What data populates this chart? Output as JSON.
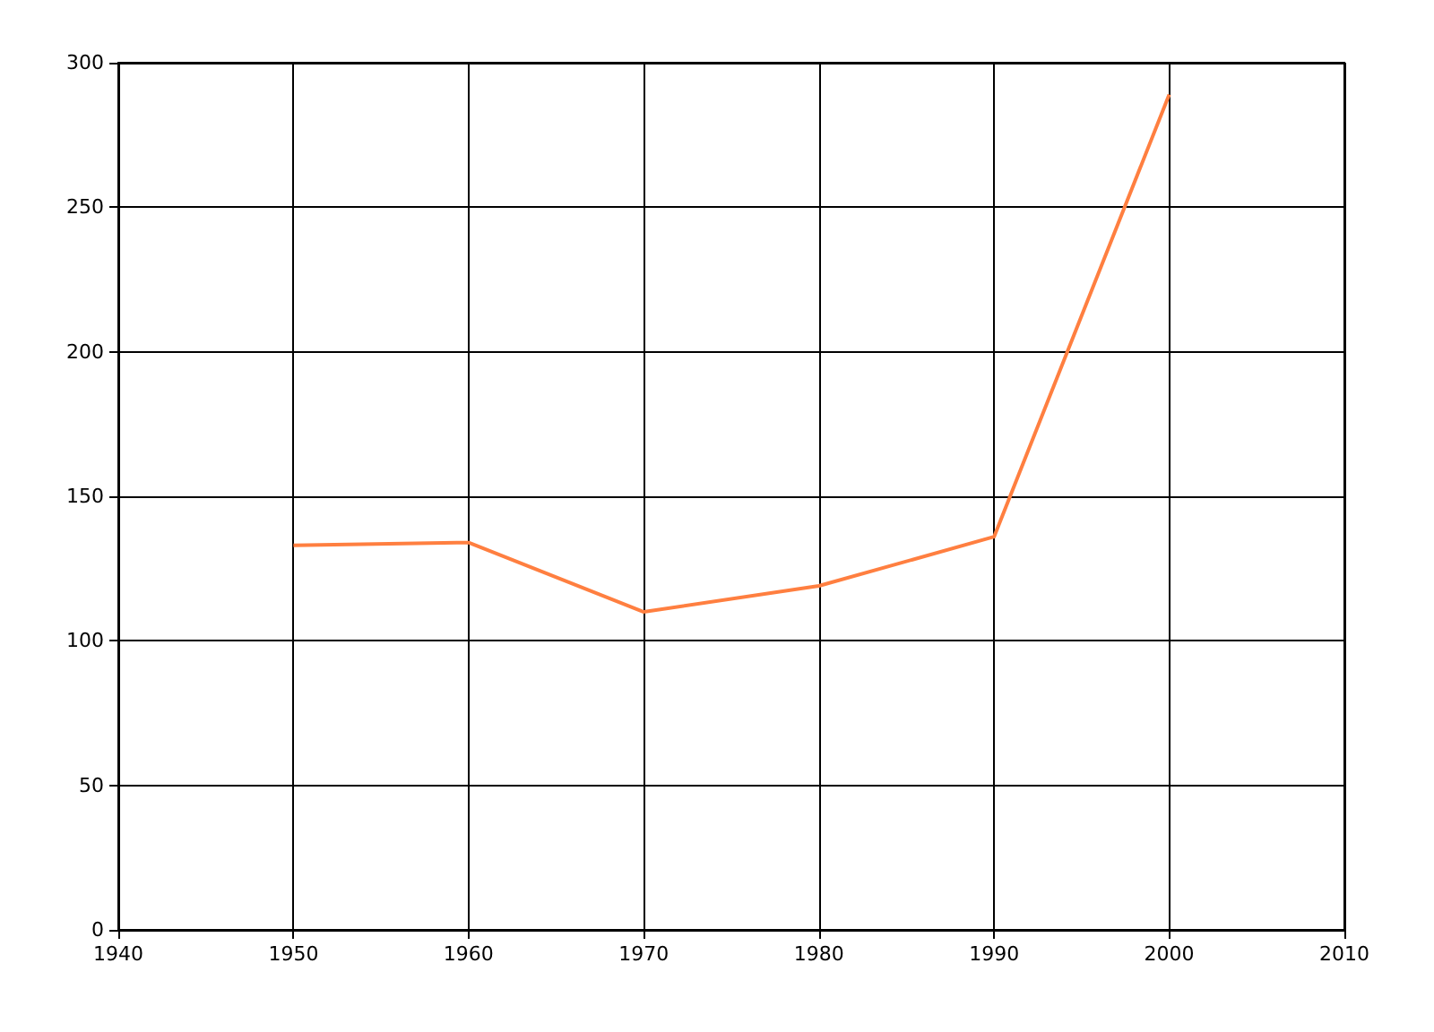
{
  "chart_data": {
    "type": "line",
    "x": [
      1950,
      1960,
      1970,
      1980,
      1990,
      2000
    ],
    "series": [
      {
        "color": "#ff7f40",
        "values": [
          133,
          134,
          110,
          119,
          136,
          289
        ]
      }
    ],
    "xlim": [
      1940,
      2010
    ],
    "xticks": [
      1940,
      1950,
      1960,
      1970,
      1980,
      1990,
      2000,
      2010
    ],
    "ylim": [
      0,
      300
    ],
    "yticks": [
      0,
      50,
      100,
      150,
      200,
      250,
      300
    ],
    "grid": true,
    "marker": "none"
  }
}
